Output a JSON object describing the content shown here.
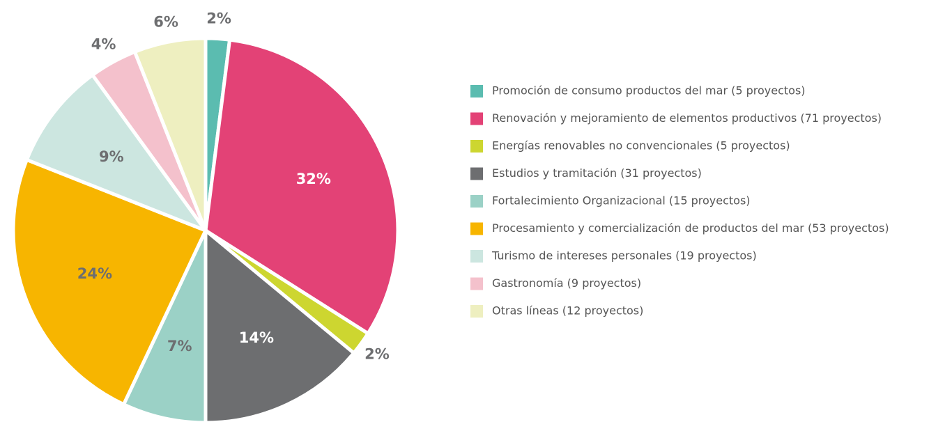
{
  "chart_data": {
    "type": "pie",
    "categories": [
      "Promoción de consumo productos del mar (5 proyectos)",
      "Renovación y mejoramiento de elementos productivos (71 proyectos)",
      "Energías renovables no convencionales (5 proyectos)",
      "Estudios y tramitación (31 proyectos)",
      "Fortalecimiento Organizacional (15 proyectos)",
      "Procesamiento y comercialización de productos del mar (53 proyectos)",
      "Turismo de intereses personales (19 proyectos)",
      "Gastronomía (9 proyectos)",
      "Otras líneas (12 proyectos)"
    ],
    "values": [
      2,
      32,
      2,
      14,
      7,
      24,
      9,
      4,
      6
    ],
    "value_labels": [
      "2%",
      "32%",
      "2%",
      "14%",
      "7%",
      "24%",
      "9%",
      "4%",
      "6%"
    ],
    "colors": [
      "#5bbcb0",
      "#e34276",
      "#cdd630",
      "#6d6e70",
      "#9bd1c6",
      "#f7b500",
      "#cce6e0",
      "#f4c1cc",
      "#eeefc0"
    ],
    "legend": "right"
  }
}
